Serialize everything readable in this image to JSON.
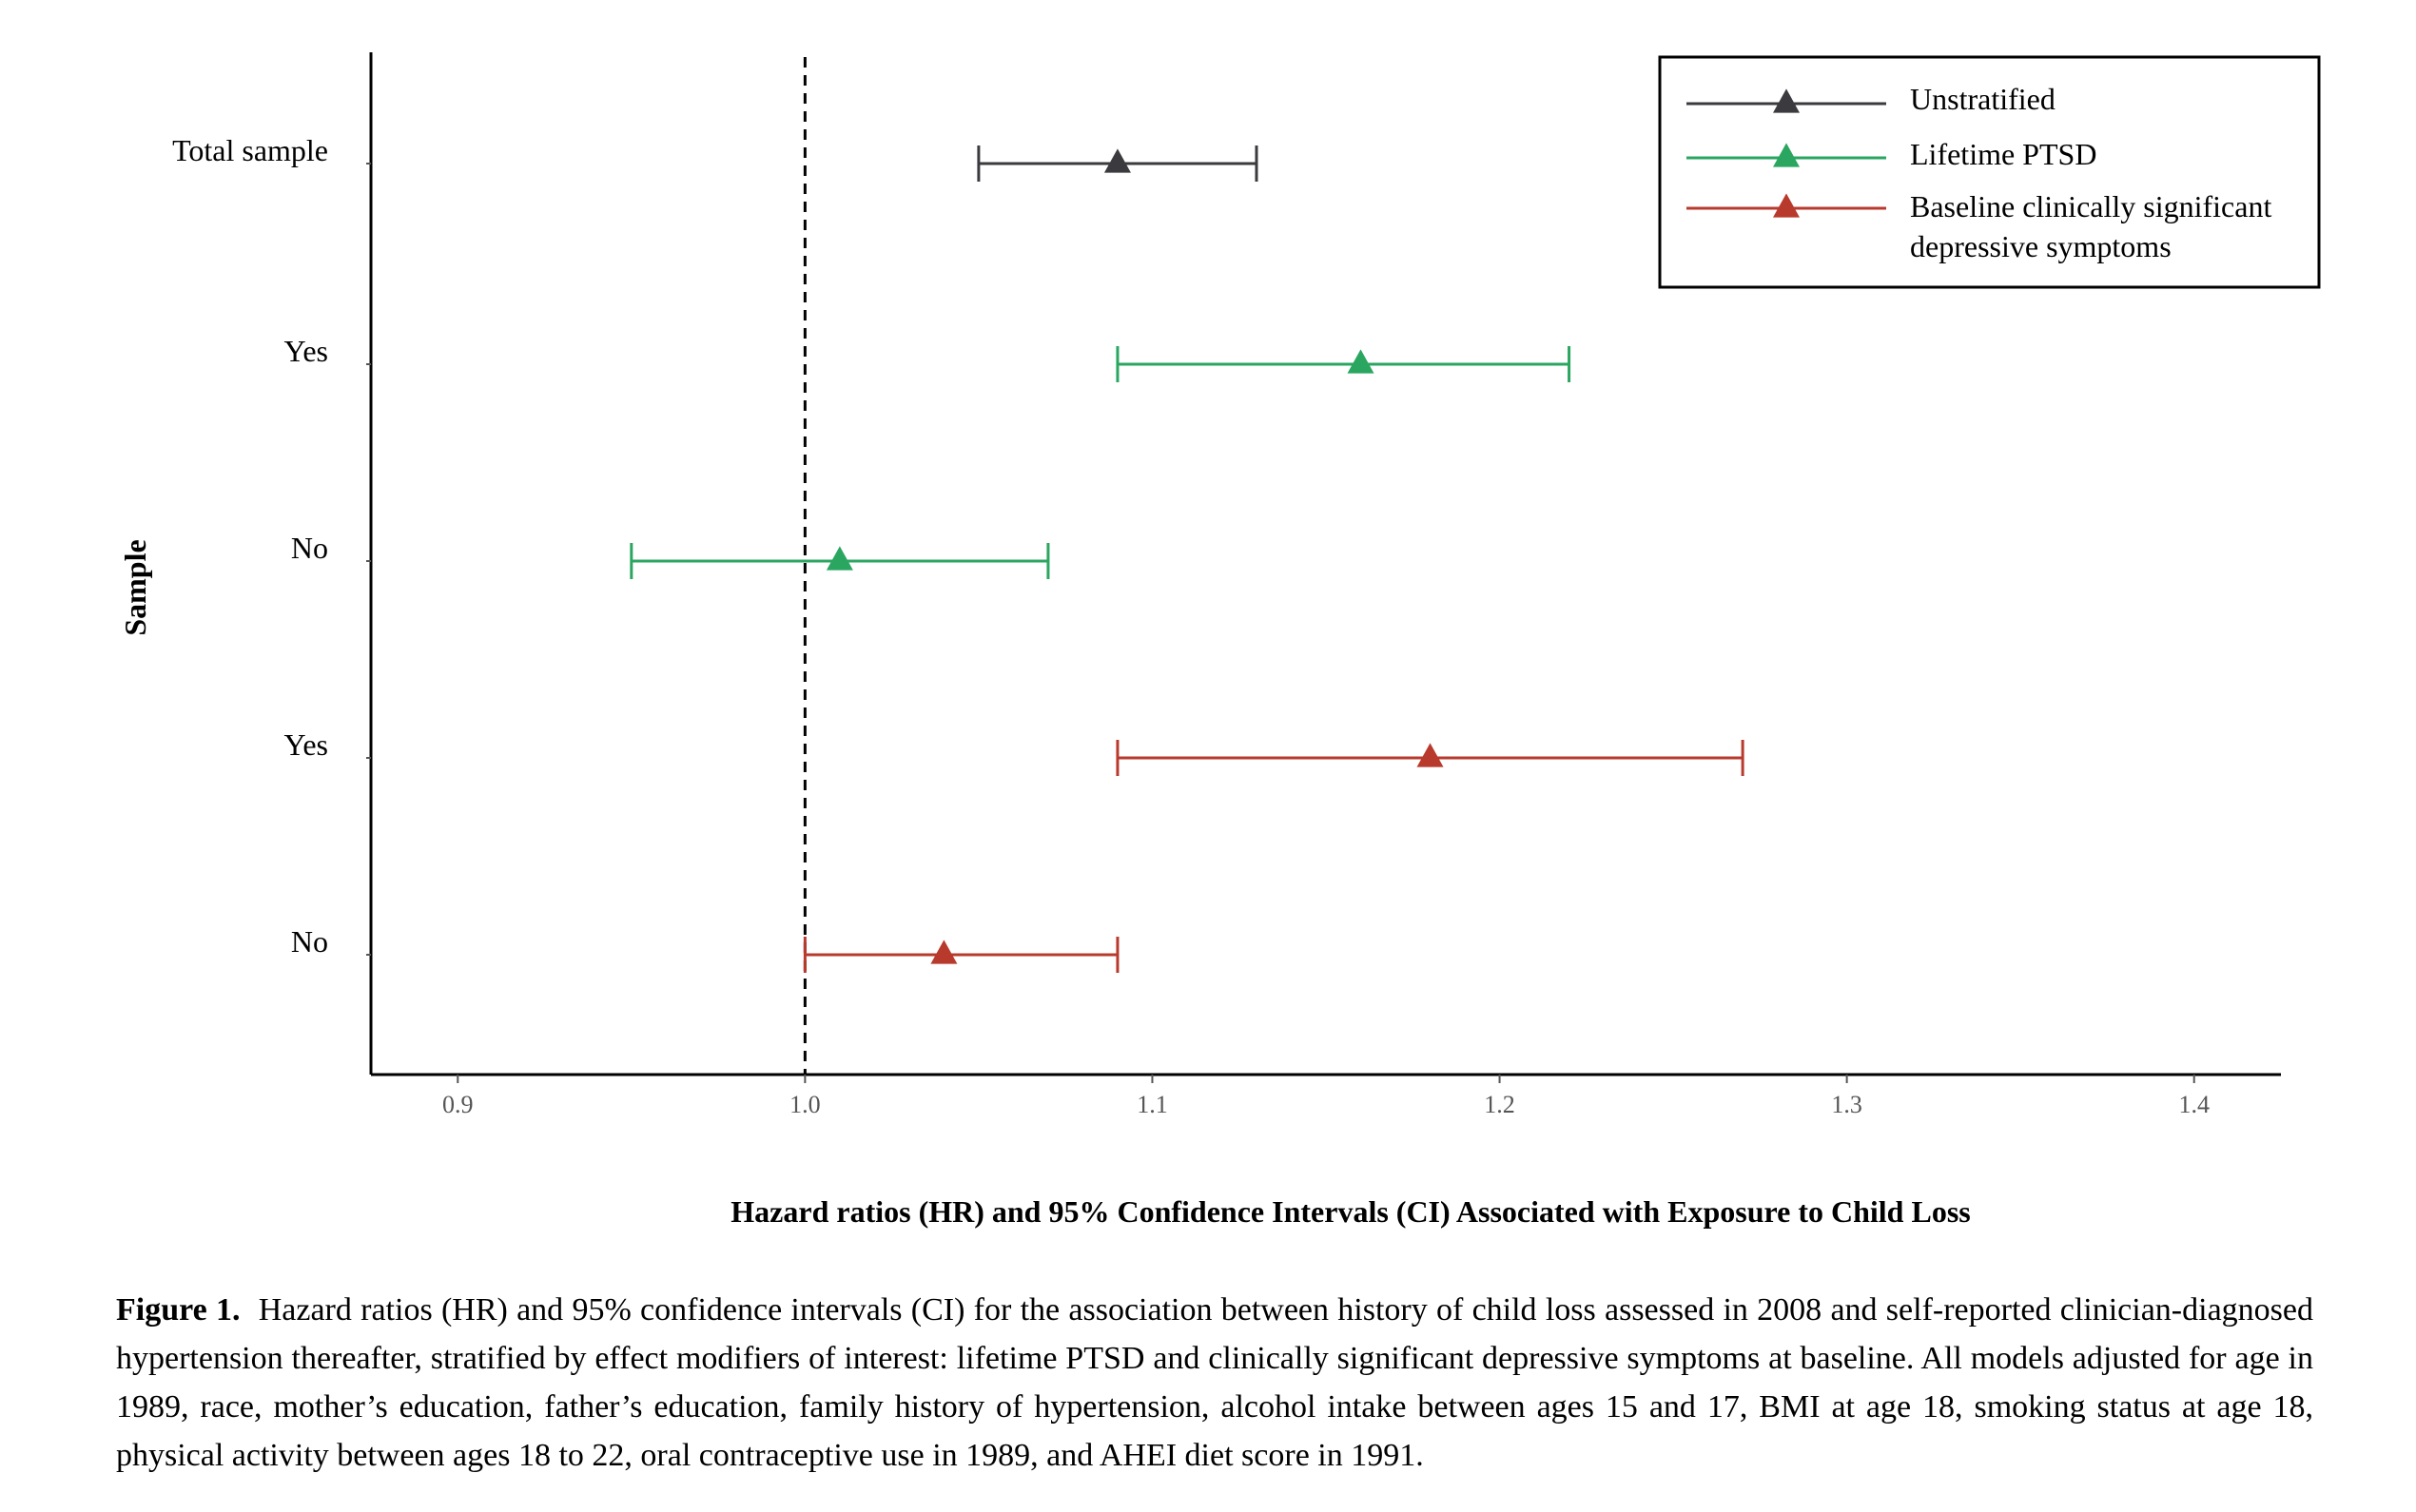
{
  "chart_data": {
    "type": "forest",
    "title": "",
    "xlabel": "Hazard ratios (HR) and 95% Confidence Intervals (CI) Associated with Exposure to Child Loss",
    "ylabel": "Sample",
    "xlim": [
      0.875,
      1.425
    ],
    "xticks": [
      "0.9",
      "1.0",
      "1.1",
      "1.2",
      "1.3",
      "1.4"
    ],
    "reference_line": 1.0,
    "grid": false,
    "legend_position": "top-right",
    "series": [
      {
        "name": "Unstratified",
        "color": "#3b3b3f",
        "rows": [
          {
            "label": "Total sample",
            "hr": 1.09,
            "ci_low": 1.05,
            "ci_high": 1.13
          }
        ]
      },
      {
        "name": "Lifetime PTSD",
        "color": "#2aa660",
        "rows": [
          {
            "label": "Yes",
            "hr": 1.16,
            "ci_low": 1.09,
            "ci_high": 1.22
          },
          {
            "label": "No",
            "hr": 1.01,
            "ci_low": 0.95,
            "ci_high": 1.07
          }
        ]
      },
      {
        "name": "Baseline clinically significant depressive symptoms",
        "name_lines": [
          "Baseline clinically significant",
          "depressive symptoms"
        ],
        "color": "#b83a2c",
        "rows": [
          {
            "label": "Yes",
            "hr": 1.18,
            "ci_low": 1.09,
            "ci_high": 1.27
          },
          {
            "label": "No",
            "hr": 1.04,
            "ci_low": 1.0,
            "ci_high": 1.09
          }
        ]
      }
    ]
  },
  "caption": {
    "label": "Figure 1.",
    "text": "Hazard ratios (HR) and 95% confidence intervals (CI) for the association between history of child loss assessed in 2008 and self-reported clinician-diagnosed hypertension thereafter, stratified by effect modifiers of interest: lifetime PTSD and clinically significant depressive symptoms at baseline. All models adjusted for age in 1989, race, mother’s education, father’s education, family history of hypertension, alcohol intake between ages 15 and 17, BMI at age 18, smoking status at age 18, physical activity between ages 18 to 22, oral contraceptive use in 1989, and AHEI diet score in 1991."
  }
}
